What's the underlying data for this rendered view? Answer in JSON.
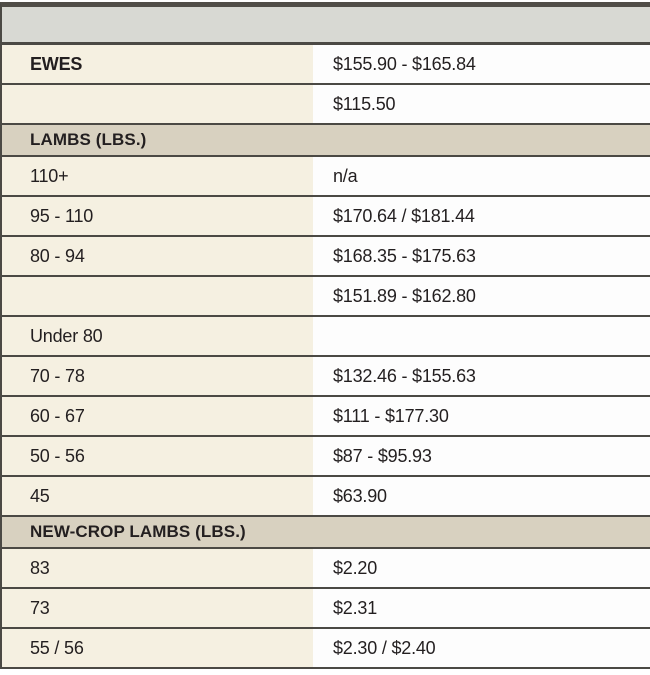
{
  "table": {
    "title": "livestock price table",
    "colors": {
      "border_dark": "#4b4944",
      "top_bar": "#504d47",
      "empty_header_gray": "#d8d9d3",
      "section_header_tan": "#d8d1c0",
      "label_column_beige": "#f5f0e1",
      "value_column_white": "#fdfdfd",
      "text": "#231f20"
    },
    "empty_header": {
      "label": "",
      "value": ""
    },
    "sections": [
      {
        "header": "",
        "rows": [
          {
            "label": "EWES",
            "value": "$155.90 - $165.84"
          },
          {
            "label": "",
            "value": "$115.50"
          }
        ]
      },
      {
        "header": "LAMBS (LBS.)",
        "rows": [
          {
            "label": "110+",
            "value": "n/a"
          },
          {
            "label": "95 - 110",
            "value": "$170.64 / $181.44"
          },
          {
            "label": "80 - 94",
            "value": "$168.35 - $175.63"
          },
          {
            "label": "",
            "value": "$151.89 - $162.80"
          },
          {
            "label": "Under 80",
            "value": ""
          },
          {
            "label": "70 - 78",
            "value": "$132.46 - $155.63"
          },
          {
            "label": "60 - 67",
            "value": "$111 - $177.30"
          },
          {
            "label": "50 - 56",
            "value": "$87 - $95.93"
          },
          {
            "label": "45",
            "value": "$63.90"
          }
        ]
      },
      {
        "header": "NEW-CROP LAMBS (LBS.)",
        "rows": [
          {
            "label": "83",
            "value": "$2.20"
          },
          {
            "label": "73",
            "value": "$2.31"
          },
          {
            "label": "55 / 56",
            "value": "$2.30 / $2.40"
          }
        ]
      }
    ]
  }
}
